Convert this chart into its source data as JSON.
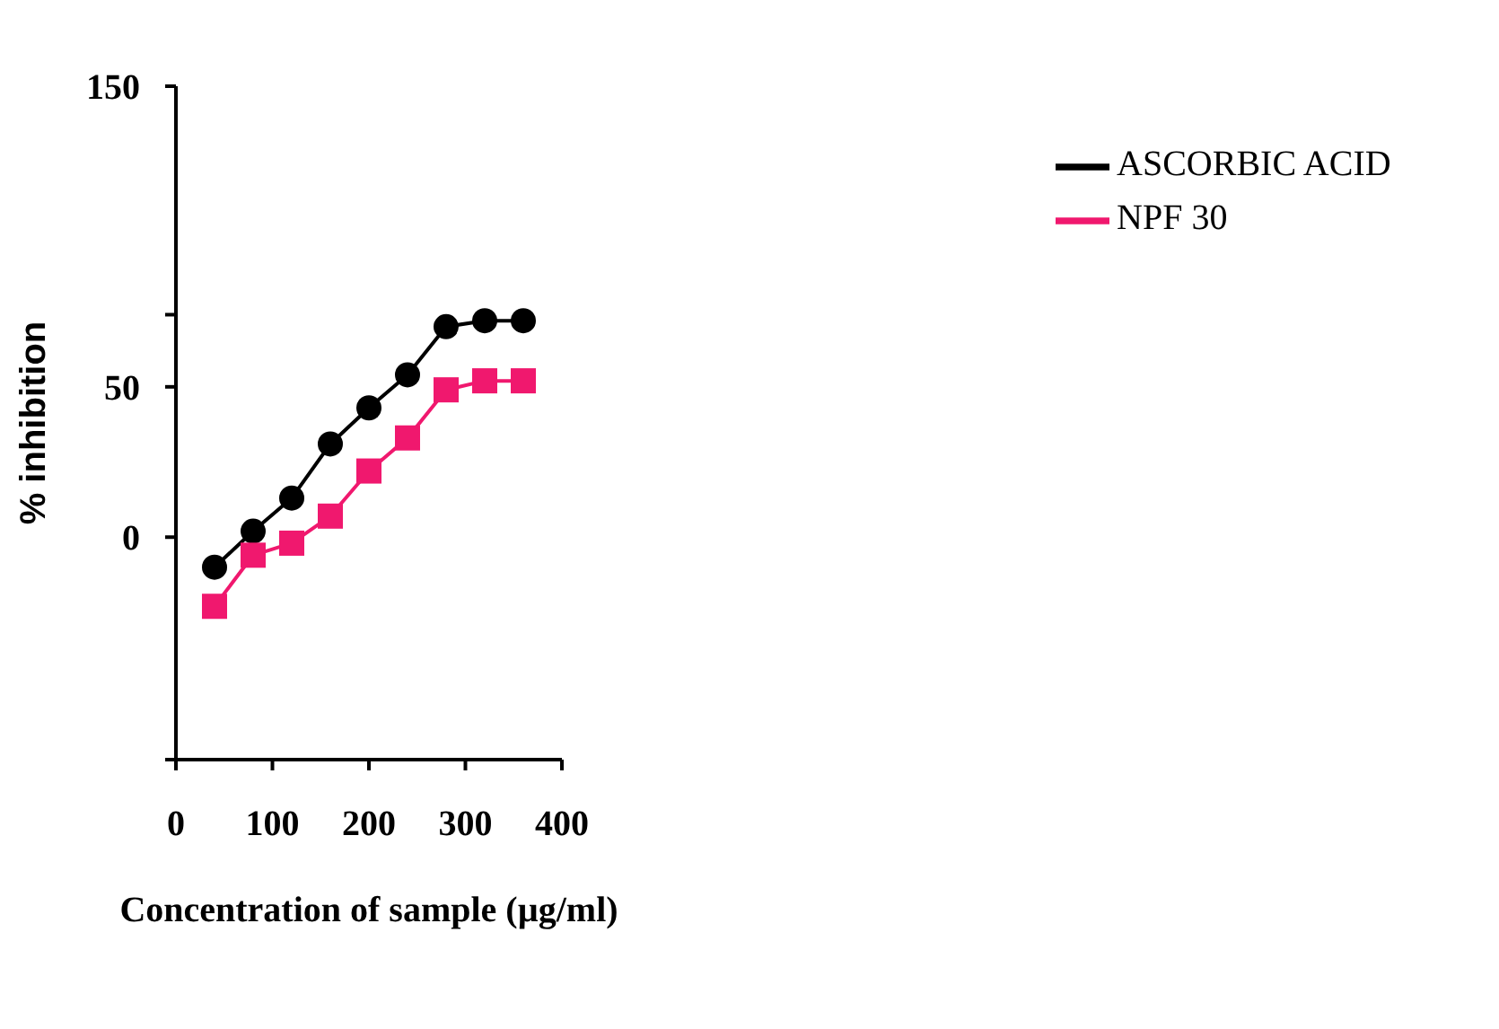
{
  "chart_data": {
    "type": "line",
    "xlabel": "Concentration of sample (µg/ml)",
    "ylabel": "% inhibition",
    "x": [
      40,
      80,
      120,
      160,
      200,
      240,
      280,
      320,
      360
    ],
    "series": [
      {
        "name": "ASCORBIC ACID",
        "color": "#000000",
        "marker": "circle",
        "values": [
          -10,
          2,
          13,
          31,
          43,
          54,
          70,
          72,
          72
        ]
      },
      {
        "name": "NPF 30",
        "color": "#f0186e",
        "marker": "square",
        "values": [
          -23,
          -6,
          -2,
          7,
          22,
          33,
          49,
          52,
          52
        ]
      }
    ],
    "xlim": [
      0,
      400
    ],
    "xticks": [
      0,
      100,
      200,
      300,
      400
    ],
    "ylim": [
      -74,
      150
    ],
    "yticks": [
      {
        "value": -74,
        "label": null
      },
      0,
      50,
      {
        "value": 74,
        "label": null
      },
      150
    ],
    "legend": "top right"
  }
}
